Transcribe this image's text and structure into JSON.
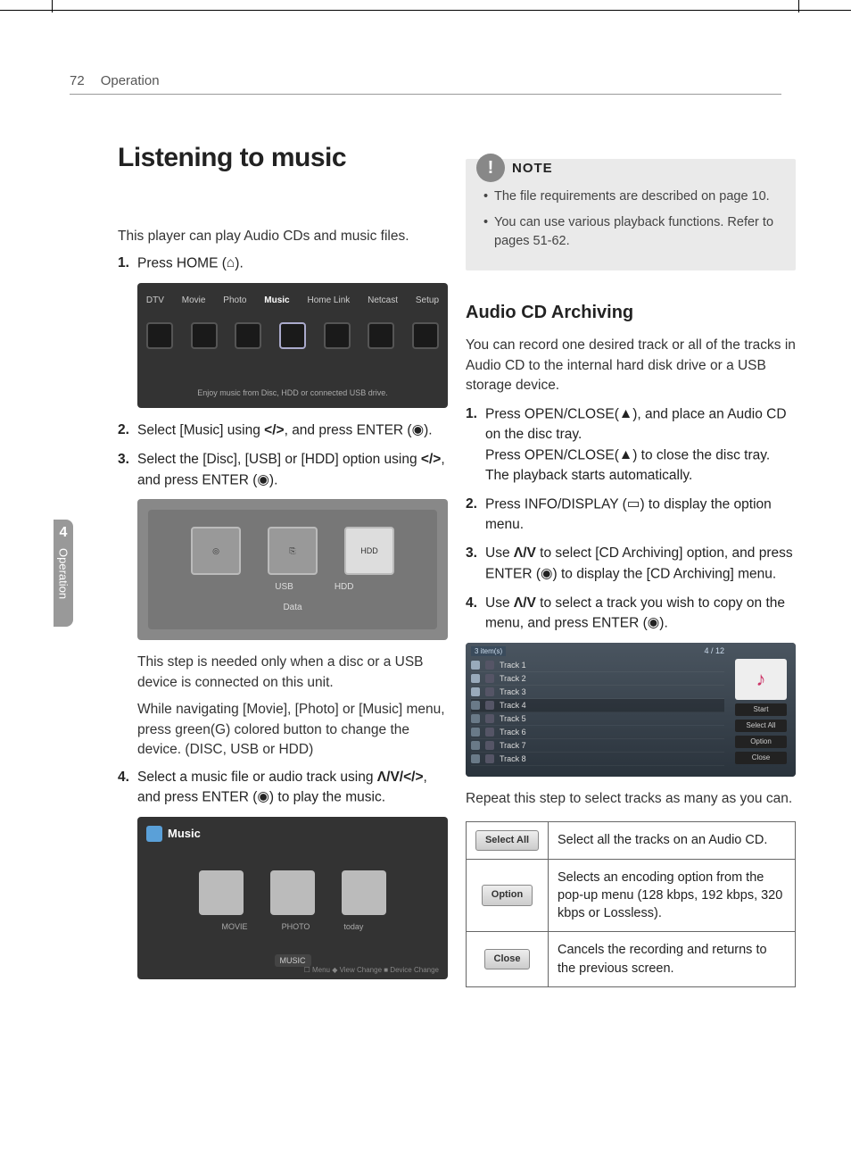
{
  "header": {
    "page_number": "72",
    "section": "Operation"
  },
  "sidebar": {
    "chapter_number": "4",
    "chapter_label": "Operation"
  },
  "left": {
    "title": "Listening to music",
    "intro": "This player can play Audio CDs and music files.",
    "steps": [
      {
        "n": "1.",
        "text_pre": "Press HOME (",
        "icon": "home-icon",
        "text_post": ")."
      },
      {
        "n": "2.",
        "text_pre": "Select [Music] using ",
        "glyph": "</>",
        "text_mid": ", and press ENTER (",
        "icon": "enter-icon",
        "text_post": ")."
      },
      {
        "n": "3.",
        "text_pre": "Select the [Disc], [USB] or [HDD] option using ",
        "glyph": "</>",
        "text_mid": ", and press ENTER (",
        "icon": "enter-icon",
        "text_post": ")."
      },
      {
        "n": "4.",
        "text_pre": "Select a music file or audio track using ",
        "glyph": "Λ/V/</>",
        "text_mid": ", and press ENTER (",
        "icon": "enter-icon",
        "text_post": ") to play the music."
      }
    ],
    "note_after_3a": "This step is needed only when a disc or a USB device is connected on this unit.",
    "note_after_3b": "While navigating [Movie], [Photo] or [Music] menu, press green(G) colored button to change the device. (DISC, USB or HDD)",
    "home_menu": {
      "items": [
        "DTV",
        "Movie",
        "Photo",
        "Music",
        "Home Link",
        "Netcast",
        "Setup"
      ],
      "caption": "Enjoy music from Disc, HDD or connected USB drive."
    },
    "device_menu": {
      "items": [
        "USB",
        "HDD"
      ],
      "hdd_label": "HDD",
      "bottom": "Data"
    },
    "music_browser": {
      "title": "Music",
      "cats": [
        "MOVIE",
        "PHOTO",
        "today"
      ],
      "center": "MUSIC",
      "footer": "☐ Menu   ◆ View Change   ■ Device Change"
    }
  },
  "right": {
    "note_label": "NOTE",
    "note_items": [
      "The file requirements are described on page 10.",
      "You can use various playback functions. Refer to pages 51-62."
    ],
    "subheading": "Audio CD Archiving",
    "sub_intro": "You can record one desired track or all of the tracks in Audio CD to the internal hard disk drive or a USB storage device.",
    "steps": [
      {
        "n": "1.",
        "line1_pre": "Press OPEN/CLOSE(",
        "icon1": "eject-icon",
        "line1_post": "), and place an Audio CD on the disc tray.",
        "line2_pre": "Press OPEN/CLOSE(",
        "icon2": "eject-icon",
        "line2_post": ") to close the disc tray. The playback starts automatically."
      },
      {
        "n": "2.",
        "line1_pre": "Press INFO/DISPLAY (",
        "icon1": "display-icon",
        "line1_post": ") to display the option menu."
      },
      {
        "n": "3.",
        "line1_pre": "Use ",
        "glyph": "Λ/V",
        "line1_mid": " to select [CD Archiving] option, and press ENTER (",
        "icon1": "enter-icon",
        "line1_post": ") to display the [CD Archiving] menu."
      },
      {
        "n": "4.",
        "line1_pre": "Use ",
        "glyph": "Λ/V",
        "line1_mid": " to select a track you wish to copy on the menu, and press ENTER (",
        "icon1": "enter-icon",
        "line1_post": ")."
      }
    ],
    "tracks": {
      "count_label": "3 item(s)",
      "page": "4 / 12",
      "rows": [
        {
          "chk": true,
          "label": "Track  1"
        },
        {
          "chk": true,
          "label": "Track  2"
        },
        {
          "chk": true,
          "label": "Track  3"
        },
        {
          "chk": false,
          "label": "Track  4",
          "sel": true
        },
        {
          "chk": false,
          "label": "Track  5"
        },
        {
          "chk": false,
          "label": "Track  6"
        },
        {
          "chk": false,
          "label": "Track  7"
        },
        {
          "chk": false,
          "label": "Track  8"
        }
      ],
      "side_buttons": [
        "Start",
        "Select All",
        "Option",
        "Close"
      ]
    },
    "after_tracks": "Repeat this step to select tracks as many as you can.",
    "options_table": [
      {
        "btn": "Select All",
        "desc": "Select all the tracks on an Audio CD."
      },
      {
        "btn": "Option",
        "desc": "Selects an encoding option from the pop-up menu (128 kbps, 192 kbps, 320 kbps or Lossless)."
      },
      {
        "btn": "Close",
        "desc": "Cancels the recording and returns to the previous screen."
      }
    ]
  },
  "icons": {
    "home": "⌂",
    "enter": "◉",
    "eject": "▲",
    "display": "▭"
  }
}
